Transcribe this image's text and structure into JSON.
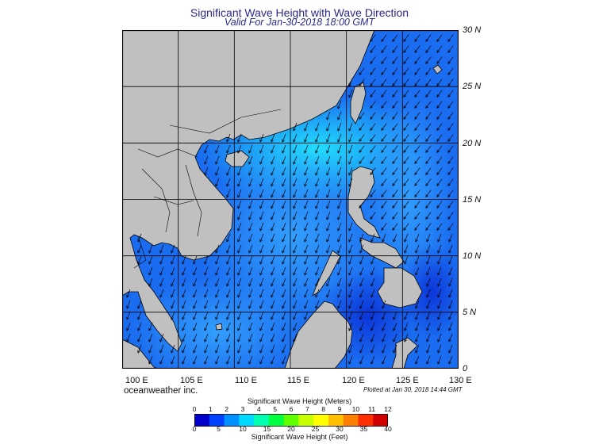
{
  "title": "Significant Wave Height with Wave Direction",
  "subtitle": "Valid For Jan-30-2018 18:00 GMT",
  "map": {
    "lon_range": [
      100,
      130
    ],
    "lat_range": [
      0,
      30
    ],
    "lon_labels": [
      "100 E",
      "105 E",
      "110 E",
      "115 E",
      "120 E",
      "125 E",
      "130 E"
    ],
    "lat_labels": [
      "30 N",
      "25 N",
      "20 N",
      "15 N",
      "10 N",
      "5 N",
      "0"
    ],
    "land_color": "#c0c0c0",
    "sea_color": "#1a6cf0",
    "grid": true,
    "wave_direction": "from north-east"
  },
  "footer": {
    "brand": "oceanweather inc.",
    "plotted": "Plotted at Jan 30, 2018 14:44 GMT"
  },
  "colorbar": {
    "title_meters": "Significant Wave Height (Meters)",
    "title_feet": "Significant Wave Height (Feet)",
    "meter_ticks": [
      "0",
      "1",
      "2",
      "3",
      "4",
      "5",
      "6",
      "7",
      "8",
      "9",
      "10",
      "11",
      "12"
    ],
    "feet_ticks": [
      "0",
      "5",
      "10",
      "15",
      "20",
      "25",
      "30",
      "35",
      "40"
    ],
    "colors": [
      "#0000c8",
      "#0040ff",
      "#0090ff",
      "#00d8ff",
      "#00ffb0",
      "#00ff40",
      "#60ff00",
      "#c8ff00",
      "#ffff00",
      "#ffc000",
      "#ff8000",
      "#ff3000",
      "#d00000"
    ]
  }
}
